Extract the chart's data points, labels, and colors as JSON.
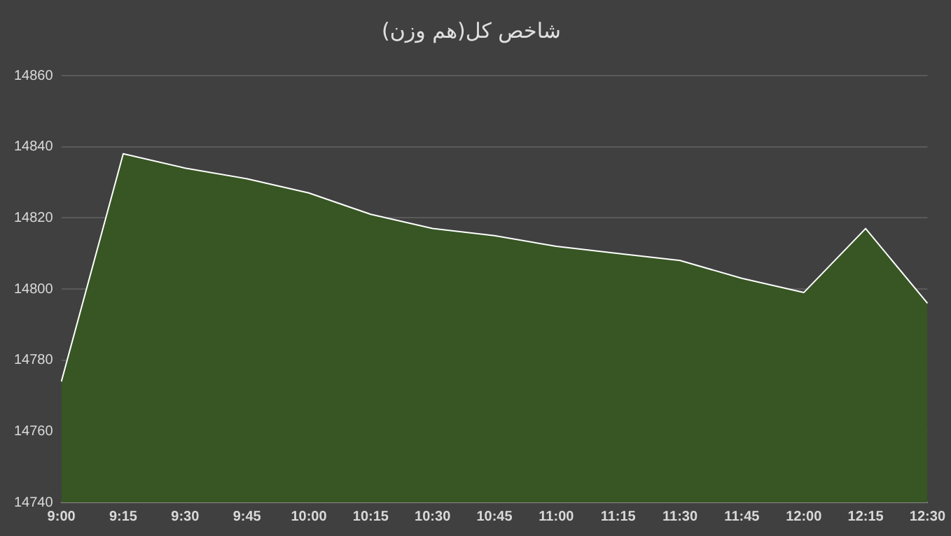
{
  "chart_data": {
    "type": "area",
    "title": "شاخص کل(هم وزن)",
    "categories": [
      "9:00",
      "9:15",
      "9:30",
      "9:45",
      "10:00",
      "10:15",
      "10:30",
      "10:45",
      "11:00",
      "11:15",
      "11:30",
      "11:45",
      "12:00",
      "12:15",
      "12:30"
    ],
    "series": [
      {
        "color": "#375623",
        "values": [
          14774,
          14838,
          14834,
          14831,
          14827,
          14821,
          14817,
          14815,
          14812,
          14810,
          14808,
          14803,
          14799,
          14817,
          14796
        ]
      }
    ],
    "ylim": [
      14740,
      14860
    ],
    "yticks": [
      14740,
      14760,
      14780,
      14800,
      14820,
      14840,
      14860
    ],
    "grid": "y",
    "legend": false
  }
}
